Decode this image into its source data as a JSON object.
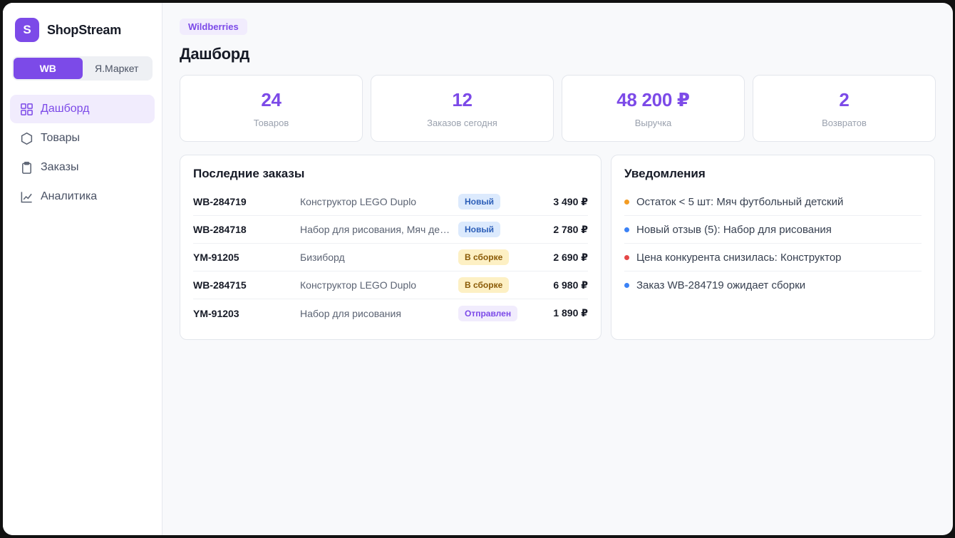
{
  "brand": {
    "logo_letter": "S",
    "name": "ShopStream"
  },
  "marketplace_switch": {
    "options": [
      "WB",
      "Я.Маркет"
    ],
    "active": "WB"
  },
  "nav": [
    {
      "label": "Дашборд",
      "icon": "grid-icon",
      "active": true
    },
    {
      "label": "Товары",
      "icon": "hexagon-icon",
      "active": false
    },
    {
      "label": "Заказы",
      "icon": "clipboard-icon",
      "active": false
    },
    {
      "label": "Аналитика",
      "icon": "chart-line-icon",
      "active": false
    }
  ],
  "header": {
    "marketplace_badge": "Wildberries",
    "title": "Дашборд"
  },
  "stats": [
    {
      "value": "24",
      "label": "Товаров"
    },
    {
      "value": "12",
      "label": "Заказов сегодня"
    },
    {
      "value": "48 200 ₽",
      "label": "Выручка"
    },
    {
      "value": "2",
      "label": "Возвратов"
    }
  ],
  "orders": {
    "title": "Последние заказы",
    "rows": [
      {
        "id": "WB-284719",
        "product": "Конструктор LEGO Duplo",
        "status": "Новый",
        "status_type": "new",
        "sum": "3 490 ₽"
      },
      {
        "id": "WB-284718",
        "product": "Набор для рисования, Мяч де…",
        "status": "Новый",
        "status_type": "new",
        "sum": "2 780 ₽"
      },
      {
        "id": "YM-91205",
        "product": "Бизиборд",
        "status": "В сборке",
        "status_type": "build",
        "sum": "2 690 ₽"
      },
      {
        "id": "WB-284715",
        "product": "Конструктор LEGO Duplo",
        "status": "В сборке",
        "status_type": "build",
        "sum": "6 980 ₽"
      },
      {
        "id": "YM-91203",
        "product": "Набор для рисования",
        "status": "Отправлен",
        "status_type": "sent",
        "sum": "1 890 ₽"
      }
    ]
  },
  "notifications": {
    "title": "Уведомления",
    "items": [
      {
        "text": "Остаток < 5 шт: Мяч футбольный детский",
        "color": "#f39c23"
      },
      {
        "text": "Новый отзыв (5): Набор для рисования",
        "color": "#3b82f6"
      },
      {
        "text": "Цена конкурента снизилась: Конструктор",
        "color": "#e54848"
      },
      {
        "text": "Заказ WB-284719 ожидает сборки",
        "color": "#3b82f6"
      }
    ]
  },
  "colors": {
    "accent": "#7c4ae8",
    "accent_soft": "#f1ecfd"
  }
}
